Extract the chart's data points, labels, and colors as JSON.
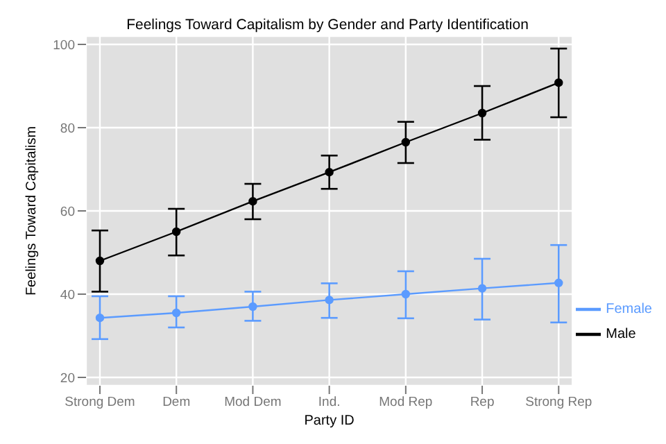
{
  "chart_data": {
    "type": "line",
    "title": "Feelings Toward Capitalism by Gender and Party Identification",
    "xlabel": "Party ID",
    "ylabel": "Feelings Toward Capitalism",
    "categories": [
      "Strong Dem",
      "Dem",
      "Mod Dem",
      "Ind.",
      "Mod Rep",
      "Rep",
      "Strong Rep"
    ],
    "series": [
      {
        "name": "Male",
        "color": "#000000",
        "values": [
          48,
          55,
          62.3,
          69.3,
          76.5,
          83.5,
          90.8
        ],
        "errors": [
          [
            40.6,
            55.3
          ],
          [
            49.3,
            60.5
          ],
          [
            58,
            66.5
          ],
          [
            65.3,
            73.3
          ],
          [
            71.5,
            81.4
          ],
          [
            77.1,
            90
          ],
          [
            82.5,
            99
          ]
        ]
      },
      {
        "name": "Female",
        "color": "#5b9bff",
        "values": [
          34.3,
          35.5,
          37,
          38.6,
          40,
          41.4,
          42.7
        ],
        "errors": [
          [
            29.2,
            39.5
          ],
          [
            32,
            39.5
          ],
          [
            33.6,
            40.6
          ],
          [
            34.3,
            42.6
          ],
          [
            34.2,
            45.5
          ],
          [
            33.9,
            48.5
          ],
          [
            33.2,
            51.8
          ]
        ]
      }
    ],
    "ylim": [
      18,
      102
    ],
    "yticks": [
      20,
      40,
      60,
      80,
      100
    ],
    "grid": true,
    "legend": "right",
    "marker": "circle",
    "line_style": "solid"
  }
}
